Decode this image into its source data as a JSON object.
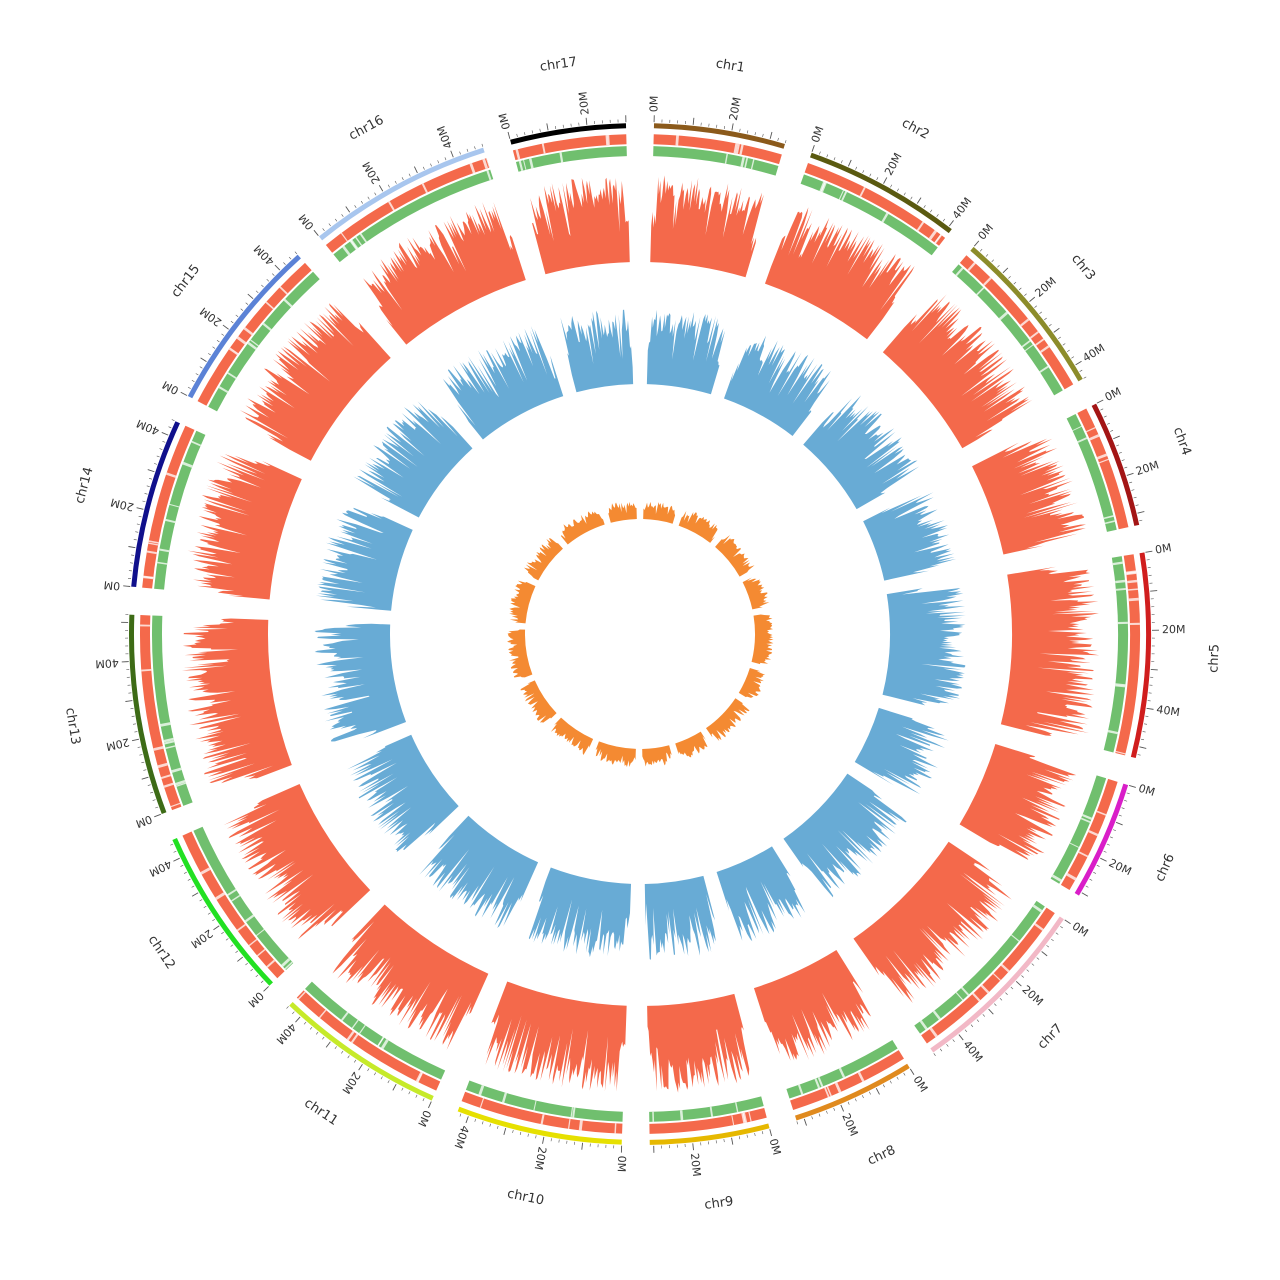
{
  "chart_data": {
    "type": "circos",
    "tick_unit": "M",
    "chromosomes": [
      {
        "name": "chr1",
        "length": 34,
        "color": "#8B5A1B",
        "ticks": [
          "0M",
          "20M"
        ]
      },
      {
        "name": "chr2",
        "length": 41,
        "color": "#5A5A10",
        "ticks": [
          "0M",
          "20M",
          "40M"
        ]
      },
      {
        "name": "chr3",
        "length": 44,
        "color": "#8C8C2A",
        "ticks": [
          "0M",
          "20M",
          "40M"
        ]
      },
      {
        "name": "chr4",
        "length": 33,
        "color": "#A31515",
        "ticks": [
          "0M",
          "20M"
        ]
      },
      {
        "name": "chr5",
        "length": 53,
        "color": "#D01E1E",
        "ticks": [
          "0M",
          "20M",
          "40M"
        ]
      },
      {
        "name": "chr6",
        "length": 31,
        "color": "#D91EC8",
        "ticks": [
          "0M",
          "20M"
        ]
      },
      {
        "name": "chr7",
        "length": 48,
        "color": "#F2B8C6",
        "ticks": [
          "0M",
          "20M",
          "40M"
        ]
      },
      {
        "name": "chr8",
        "length": 32,
        "color": "#E08A1E",
        "ticks": [
          "0M",
          "20M"
        ]
      },
      {
        "name": "chr9",
        "length": 31,
        "color": "#E6B800",
        "ticks": [
          "0M",
          "20M"
        ]
      },
      {
        "name": "chr10",
        "length": 43,
        "color": "#E6E000",
        "ticks": [
          "0M",
          "20M",
          "40M"
        ]
      },
      {
        "name": "chr11",
        "length": 44,
        "color": "#C6EA2A",
        "ticks": [
          "0M",
          "20M",
          "40M"
        ]
      },
      {
        "name": "chr12",
        "length": 45,
        "color": "#22E022",
        "ticks": [
          "0M",
          "20M",
          "40M"
        ]
      },
      {
        "name": "chr13",
        "length": 52,
        "color": "#3D6B16",
        "ticks": [
          "0M",
          "20M",
          "40M"
        ]
      },
      {
        "name": "chr14",
        "length": 44,
        "color": "#10108C",
        "ticks": [
          "0M",
          "20M",
          "40M"
        ]
      },
      {
        "name": "chr15",
        "length": 46,
        "color": "#5B82D6",
        "ticks": [
          "0M",
          "20M",
          "40M"
        ]
      },
      {
        "name": "chr16",
        "length": 48,
        "color": "#A8C6EE",
        "ticks": [
          "0M",
          "20M",
          "40M"
        ]
      },
      {
        "name": "chr17",
        "length": 30,
        "color": "#000000",
        "ticks": [
          "0M",
          "20M"
        ]
      }
    ],
    "tracks": [
      {
        "name": "",
        "kind": "heatmap-band",
        "color": "#F4694B"
      },
      {
        "name": "",
        "kind": "heatmap-band",
        "color": "#70BF6E"
      },
      {
        "name": "",
        "kind": "histogram",
        "color": "#F4694B"
      },
      {
        "name": "",
        "kind": "histogram",
        "color": "#68ABD5"
      },
      {
        "name": "",
        "kind": "histogram",
        "color": "#F48A32"
      }
    ]
  }
}
